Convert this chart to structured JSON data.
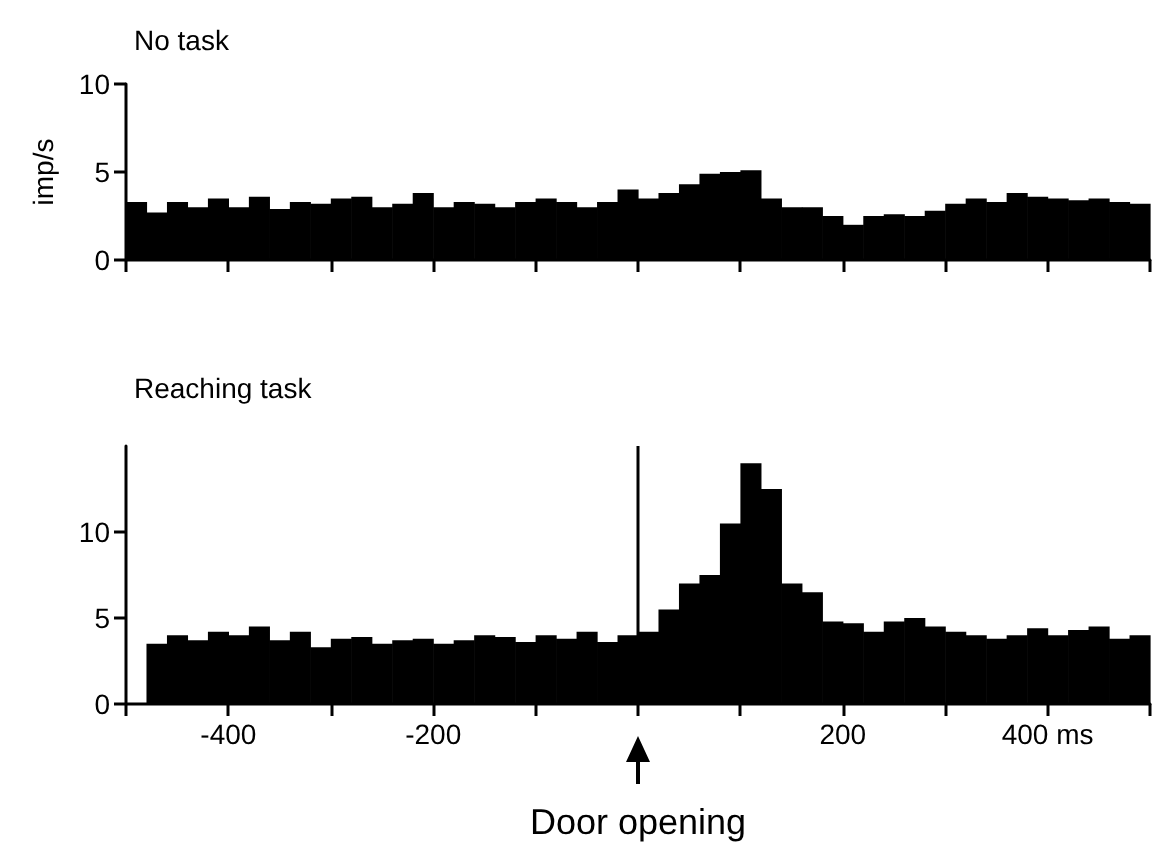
{
  "chart_data": [
    {
      "type": "histogram",
      "title": "No task",
      "ylabel": "imp/s",
      "color": "#000000",
      "bins": [
        -500,
        -480,
        -460,
        -440,
        -420,
        -400,
        -380,
        -360,
        -340,
        -320,
        -300,
        -280,
        -260,
        -240,
        -220,
        -200,
        -180,
        -160,
        -140,
        -120,
        -100,
        -80,
        -60,
        -40,
        -20,
        0,
        20,
        40,
        60,
        80,
        100,
        120,
        140,
        160,
        180,
        200,
        220,
        240,
        260,
        280,
        300,
        320,
        340,
        360,
        380,
        400,
        420,
        440,
        460,
        480,
        500
      ],
      "values": [
        3.3,
        2.7,
        3.3,
        3.0,
        3.5,
        3.0,
        3.6,
        2.9,
        3.3,
        3.2,
        3.5,
        3.6,
        3.0,
        3.2,
        3.8,
        3.0,
        3.3,
        3.2,
        3.0,
        3.3,
        3.5,
        3.3,
        3.0,
        3.3,
        4.0,
        3.5,
        3.8,
        4.3,
        4.9,
        5.0,
        5.1,
        3.5,
        3.0,
        3.0,
        2.5,
        2.0,
        2.5,
        2.6,
        2.5,
        2.8,
        3.2,
        3.5,
        3.3,
        3.8,
        3.6,
        3.5,
        3.4,
        3.5,
        3.3,
        3.2
      ],
      "xlim": [
        -500,
        500
      ],
      "ylim": [
        0,
        10
      ],
      "yticks": [
        0,
        5,
        10
      ],
      "xticks": [
        {
          "value": -500,
          "label": null
        },
        {
          "value": -400,
          "label": null
        },
        {
          "value": -300,
          "label": null
        },
        {
          "value": -200,
          "label": null
        },
        {
          "value": -100,
          "label": null
        },
        {
          "value": 0,
          "label": null
        },
        {
          "value": 100,
          "label": null
        },
        {
          "value": 200,
          "label": null
        },
        {
          "value": 300,
          "label": null
        },
        {
          "value": 400,
          "label": null
        },
        {
          "value": 500,
          "label": null
        }
      ],
      "tick_labels": "y"
    },
    {
      "type": "histogram",
      "title": "Reaching task",
      "color": "#000000",
      "bins": [
        -480,
        -460,
        -440,
        -420,
        -400,
        -380,
        -360,
        -340,
        -320,
        -300,
        -280,
        -260,
        -240,
        -220,
        -200,
        -180,
        -160,
        -140,
        -120,
        -100,
        -80,
        -60,
        -40,
        -20,
        0,
        20,
        40,
        60,
        80,
        100,
        120,
        140,
        160,
        180,
        200,
        220,
        240,
        260,
        280,
        300,
        320,
        340,
        360,
        380,
        400,
        420,
        440,
        460,
        480,
        500
      ],
      "values": [
        3.5,
        4.0,
        3.7,
        4.2,
        4.0,
        4.5,
        3.7,
        4.2,
        3.3,
        3.8,
        3.9,
        3.5,
        3.7,
        3.8,
        3.5,
        3.7,
        4.0,
        3.9,
        3.6,
        4.0,
        3.8,
        4.2,
        3.6,
        4.0,
        4.2,
        5.5,
        7.0,
        7.5,
        10.5,
        14.0,
        12.5,
        7.0,
        6.5,
        4.8,
        4.7,
        4.2,
        4.8,
        5.0,
        4.5,
        4.2,
        4.0,
        3.8,
        4.0,
        4.4,
        4.0,
        4.3,
        4.5,
        3.8,
        4.0
      ],
      "xlim": [
        -500,
        500
      ],
      "ylim": [
        0,
        15
      ],
      "yticks": [
        0,
        5,
        10
      ],
      "xticks": [
        {
          "value": -500,
          "label": null
        },
        {
          "value": -400,
          "label": "-400"
        },
        {
          "value": -300,
          "label": null
        },
        {
          "value": -200,
          "label": "-200"
        },
        {
          "value": -100,
          "label": null
        },
        {
          "value": 0,
          "label": null
        },
        {
          "value": 100,
          "label": null
        },
        {
          "value": 200,
          "label": "200"
        },
        {
          "value": 300,
          "label": null
        },
        {
          "value": 400,
          "label": "400 ms"
        },
        {
          "value": 500,
          "label": null
        }
      ],
      "ref_lines": [
        {
          "axis": "x",
          "value": 0,
          "label": "Door opening",
          "color": "#000000"
        }
      ]
    }
  ]
}
